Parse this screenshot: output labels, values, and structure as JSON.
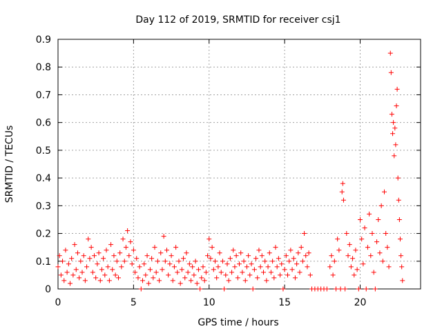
{
  "chart_data": {
    "type": "scatter",
    "title": "Day 112 of 2019, SRMTID for receiver csj1",
    "xlabel": "GPS time / hours",
    "ylabel": "SRMTID / TECUs",
    "xlim": [
      0,
      24
    ],
    "ylim": [
      0,
      0.9
    ],
    "x_ticks": [
      0,
      5,
      10,
      15,
      20
    ],
    "y_ticks": [
      0,
      0.1,
      0.2,
      0.3,
      0.4,
      0.5,
      0.6,
      0.7,
      0.8,
      0.9
    ],
    "grid": true,
    "marker": "plus",
    "series": [
      {
        "name": "SRMTID",
        "color": "#ff0000",
        "points": [
          [
            0.0,
            0.08
          ],
          [
            0.1,
            0.12
          ],
          [
            0.2,
            0.05
          ],
          [
            0.3,
            0.1
          ],
          [
            0.4,
            0.03
          ],
          [
            0.5,
            0.14
          ],
          [
            0.6,
            0.06
          ],
          [
            0.7,
            0.09
          ],
          [
            0.8,
            0.02
          ],
          [
            0.9,
            0.11
          ],
          [
            1.0,
            0.05
          ],
          [
            1.1,
            0.16
          ],
          [
            1.2,
            0.07
          ],
          [
            1.3,
            0.13
          ],
          [
            1.4,
            0.04
          ],
          [
            1.5,
            0.1
          ],
          [
            1.6,
            0.06
          ],
          [
            1.7,
            0.12
          ],
          [
            1.8,
            0.03
          ],
          [
            1.9,
            0.08
          ],
          [
            2.0,
            0.18
          ],
          [
            2.1,
            0.11
          ],
          [
            2.2,
            0.15
          ],
          [
            2.3,
            0.06
          ],
          [
            2.4,
            0.12
          ],
          [
            2.5,
            0.04
          ],
          [
            2.6,
            0.09
          ],
          [
            2.7,
            0.13
          ],
          [
            2.8,
            0.03
          ],
          [
            2.9,
            0.07
          ],
          [
            3.0,
            0.11
          ],
          [
            3.1,
            0.05
          ],
          [
            3.2,
            0.14
          ],
          [
            3.3,
            0.08
          ],
          [
            3.4,
            0.03
          ],
          [
            3.5,
            0.16
          ],
          [
            3.6,
            0.07
          ],
          [
            3.7,
            0.12
          ],
          [
            3.8,
            0.05
          ],
          [
            3.9,
            0.1
          ],
          [
            4.0,
            0.04
          ],
          [
            4.1,
            0.13
          ],
          [
            4.2,
            0.08
          ],
          [
            4.3,
            0.18
          ],
          [
            4.4,
            0.1
          ],
          [
            4.5,
            0.15
          ],
          [
            4.6,
            0.21
          ],
          [
            4.7,
            0.12
          ],
          [
            4.8,
            0.17
          ],
          [
            4.9,
            0.09
          ],
          [
            5.0,
            0.14
          ],
          [
            5.1,
            0.06
          ],
          [
            5.2,
            0.11
          ],
          [
            5.3,
            0.04
          ],
          [
            5.4,
            0.08
          ],
          [
            5.5,
            0.0
          ],
          [
            5.6,
            0.03
          ],
          [
            5.7,
            0.09
          ],
          [
            5.8,
            0.05
          ],
          [
            5.9,
            0.12
          ],
          [
            6.0,
            0.02
          ],
          [
            6.1,
            0.07
          ],
          [
            6.2,
            0.11
          ],
          [
            6.3,
            0.04
          ],
          [
            6.4,
            0.15
          ],
          [
            6.5,
            0.06
          ],
          [
            6.6,
            0.1
          ],
          [
            6.7,
            0.03
          ],
          [
            6.8,
            0.13
          ],
          [
            6.9,
            0.07
          ],
          [
            7.0,
            0.19
          ],
          [
            7.1,
            0.1
          ],
          [
            7.2,
            0.14
          ],
          [
            7.3,
            0.05
          ],
          [
            7.4,
            0.09
          ],
          [
            7.5,
            0.12
          ],
          [
            7.6,
            0.03
          ],
          [
            7.7,
            0.08
          ],
          [
            7.8,
            0.15
          ],
          [
            7.9,
            0.06
          ],
          [
            8.0,
            0.1
          ],
          [
            8.1,
            0.02
          ],
          [
            8.2,
            0.07
          ],
          [
            8.3,
            0.11
          ],
          [
            8.4,
            0.04
          ],
          [
            8.5,
            0.13
          ],
          [
            8.6,
            0.06
          ],
          [
            8.7,
            0.09
          ],
          [
            8.8,
            0.03
          ],
          [
            8.9,
            0.08
          ],
          [
            9.0,
            0.05
          ],
          [
            9.1,
            0.1
          ],
          [
            9.2,
            0.02
          ],
          [
            9.3,
            0.07
          ],
          [
            9.4,
            0.0
          ],
          [
            9.5,
            0.04
          ],
          [
            9.6,
            0.08
          ],
          [
            9.7,
            0.03
          ],
          [
            9.8,
            0.06
          ],
          [
            9.9,
            0.12
          ],
          [
            10.0,
            0.18
          ],
          [
            10.1,
            0.11
          ],
          [
            10.2,
            0.15
          ],
          [
            10.3,
            0.07
          ],
          [
            10.4,
            0.1
          ],
          [
            10.5,
            0.04
          ],
          [
            10.6,
            0.08
          ],
          [
            10.7,
            0.13
          ],
          [
            10.8,
            0.06
          ],
          [
            10.9,
            0.1
          ],
          [
            11.0,
            0.0
          ],
          [
            11.1,
            0.05
          ],
          [
            11.2,
            0.09
          ],
          [
            11.3,
            0.03
          ],
          [
            11.4,
            0.11
          ],
          [
            11.5,
            0.06
          ],
          [
            11.6,
            0.14
          ],
          [
            11.7,
            0.08
          ],
          [
            11.8,
            0.12
          ],
          [
            11.9,
            0.04
          ],
          [
            12.0,
            0.09
          ],
          [
            12.1,
            0.13
          ],
          [
            12.2,
            0.06
          ],
          [
            12.3,
            0.1
          ],
          [
            12.4,
            0.03
          ],
          [
            12.5,
            0.08
          ],
          [
            12.6,
            0.12
          ],
          [
            12.7,
            0.05
          ],
          [
            12.8,
            0.09
          ],
          [
            12.9,
            0.0
          ],
          [
            13.0,
            0.07
          ],
          [
            13.1,
            0.11
          ],
          [
            13.2,
            0.04
          ],
          [
            13.3,
            0.14
          ],
          [
            13.4,
            0.08
          ],
          [
            13.5,
            0.12
          ],
          [
            13.6,
            0.06
          ],
          [
            13.7,
            0.1
          ],
          [
            13.8,
            0.03
          ],
          [
            13.9,
            0.08
          ],
          [
            14.0,
            0.13
          ],
          [
            14.1,
            0.06
          ],
          [
            14.2,
            0.1
          ],
          [
            14.3,
            0.04
          ],
          [
            14.4,
            0.15
          ],
          [
            14.5,
            0.08
          ],
          [
            14.6,
            0.11
          ],
          [
            14.7,
            0.05
          ],
          [
            14.8,
            0.09
          ],
          [
            14.9,
            0.0
          ],
          [
            15.0,
            0.07
          ],
          [
            15.1,
            0.12
          ],
          [
            15.2,
            0.05
          ],
          [
            15.3,
            0.1
          ],
          [
            15.4,
            0.14
          ],
          [
            15.5,
            0.07
          ],
          [
            15.6,
            0.11
          ],
          [
            15.7,
            0.04
          ],
          [
            15.8,
            0.09
          ],
          [
            15.9,
            0.13
          ],
          [
            16.0,
            0.06
          ],
          [
            16.1,
            0.15
          ],
          [
            16.2,
            0.1
          ],
          [
            16.3,
            0.2
          ],
          [
            16.4,
            0.12
          ],
          [
            16.5,
            0.08
          ],
          [
            16.6,
            0.13
          ],
          [
            16.7,
            0.05
          ],
          [
            16.8,
            0.0
          ],
          [
            17.0,
            0.0
          ],
          [
            17.2,
            0.0
          ],
          [
            17.4,
            0.0
          ],
          [
            17.6,
            0.0
          ],
          [
            17.8,
            0.0
          ],
          [
            18.0,
            0.08
          ],
          [
            18.1,
            0.12
          ],
          [
            18.2,
            0.05
          ],
          [
            18.3,
            0.1
          ],
          [
            18.4,
            0.0
          ],
          [
            18.5,
            0.18
          ],
          [
            18.6,
            0.14
          ],
          [
            18.7,
            0.0
          ],
          [
            18.8,
            0.35
          ],
          [
            18.85,
            0.38
          ],
          [
            18.9,
            0.32
          ],
          [
            19.0,
            0.0
          ],
          [
            19.1,
            0.2
          ],
          [
            19.2,
            0.12
          ],
          [
            19.3,
            0.16
          ],
          [
            19.4,
            0.08
          ],
          [
            19.5,
            0.11
          ],
          [
            19.6,
            0.05
          ],
          [
            19.7,
            0.14
          ],
          [
            19.8,
            0.07
          ],
          [
            19.9,
            0.0
          ],
          [
            20.0,
            0.25
          ],
          [
            20.1,
            0.18
          ],
          [
            20.2,
            0.09
          ],
          [
            20.3,
            0.22
          ],
          [
            20.4,
            0.0
          ],
          [
            20.5,
            0.15
          ],
          [
            20.6,
            0.27
          ],
          [
            20.7,
            0.12
          ],
          [
            20.8,
            0.2
          ],
          [
            20.9,
            0.06
          ],
          [
            21.0,
            0.0
          ],
          [
            21.1,
            0.17
          ],
          [
            21.2,
            0.25
          ],
          [
            21.3,
            0.13
          ],
          [
            21.4,
            0.3
          ],
          [
            21.5,
            0.1
          ],
          [
            21.6,
            0.35
          ],
          [
            21.7,
            0.2
          ],
          [
            21.8,
            0.15
          ],
          [
            21.9,
            0.08
          ],
          [
            22.0,
            0.85
          ],
          [
            22.05,
            0.78
          ],
          [
            22.1,
            0.63
          ],
          [
            22.15,
            0.56
          ],
          [
            22.2,
            0.6
          ],
          [
            22.25,
            0.48
          ],
          [
            22.3,
            0.58
          ],
          [
            22.35,
            0.52
          ],
          [
            22.4,
            0.66
          ],
          [
            22.45,
            0.72
          ],
          [
            22.5,
            0.4
          ],
          [
            22.55,
            0.32
          ],
          [
            22.6,
            0.25
          ],
          [
            22.65,
            0.18
          ],
          [
            22.7,
            0.12
          ],
          [
            22.75,
            0.08
          ],
          [
            22.8,
            0.03
          ]
        ]
      }
    ]
  }
}
